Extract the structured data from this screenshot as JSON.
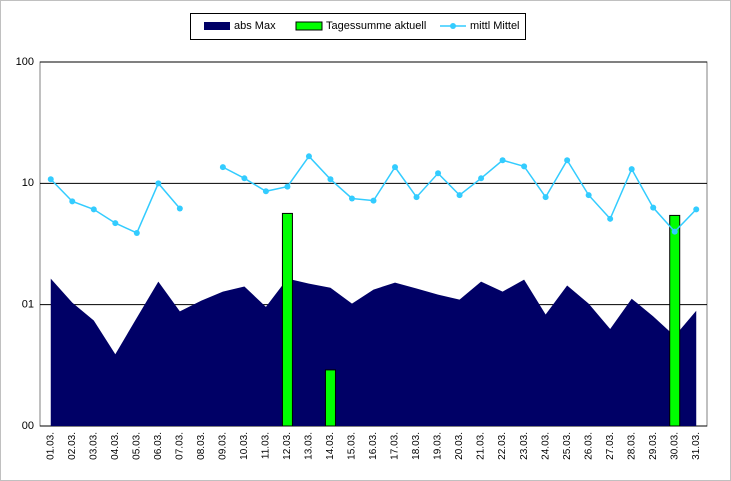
{
  "chart_data": {
    "type": "combo",
    "categories": [
      "01.03.",
      "02.03.",
      "03.03.",
      "04.03.",
      "05.03.",
      "06.03.",
      "07.03.",
      "08.03.",
      "09.03.",
      "10.03.",
      "11.03.",
      "12.03.",
      "13.03.",
      "14.03.",
      "15.03.",
      "16.03.",
      "17.03.",
      "18.03.",
      "19.03.",
      "20.03.",
      "21.03.",
      "22.03.",
      "23.03.",
      "24.03.",
      "25.03.",
      "26.03.",
      "27.03.",
      "28.03.",
      "29.03.",
      "30.03.",
      "31.03."
    ],
    "series": [
      {
        "name": "abs Max",
        "type": "area",
        "color": "#000066",
        "values": [
          1.64,
          1.04,
          0.74,
          0.39,
          0.78,
          1.55,
          0.88,
          1.08,
          1.28,
          1.41,
          0.96,
          1.64,
          1.49,
          1.38,
          1.02,
          1.33,
          1.52,
          1.36,
          1.21,
          1.1,
          1.55,
          1.28,
          1.61,
          0.83,
          1.44,
          1.02,
          0.63,
          1.12,
          0.8,
          0.55,
          0.89
        ]
      },
      {
        "name": "Tagessumme aktuell",
        "type": "bar",
        "color": "#00ff00",
        "values": [
          null,
          null,
          null,
          null,
          null,
          null,
          null,
          null,
          null,
          null,
          null,
          5.65,
          null,
          0.29,
          null,
          null,
          null,
          null,
          null,
          null,
          null,
          null,
          null,
          null,
          null,
          null,
          null,
          null,
          null,
          5.44,
          null
        ]
      },
      {
        "name": "mittl Mittel",
        "type": "line",
        "color": "#33ccff",
        "values": [
          10.8,
          7.1,
          6.1,
          4.7,
          3.9,
          10,
          6.2,
          null,
          13.6,
          11,
          8.6,
          9.4,
          16.7,
          10.8,
          7.5,
          7.2,
          13.6,
          7.7,
          12.1,
          8,
          11,
          15.5,
          13.8,
          7.7,
          15.5,
          8,
          5.1,
          13.1,
          6.3,
          4,
          6.1
        ]
      }
    ],
    "yscale": "log",
    "ylim": [
      0.1,
      100
    ],
    "yticks": [
      100,
      10,
      {
        "value": 1,
        "label": "01"
      },
      {
        "value": 0.1,
        "label": "00"
      }
    ],
    "grid": true,
    "legend": "top"
  }
}
